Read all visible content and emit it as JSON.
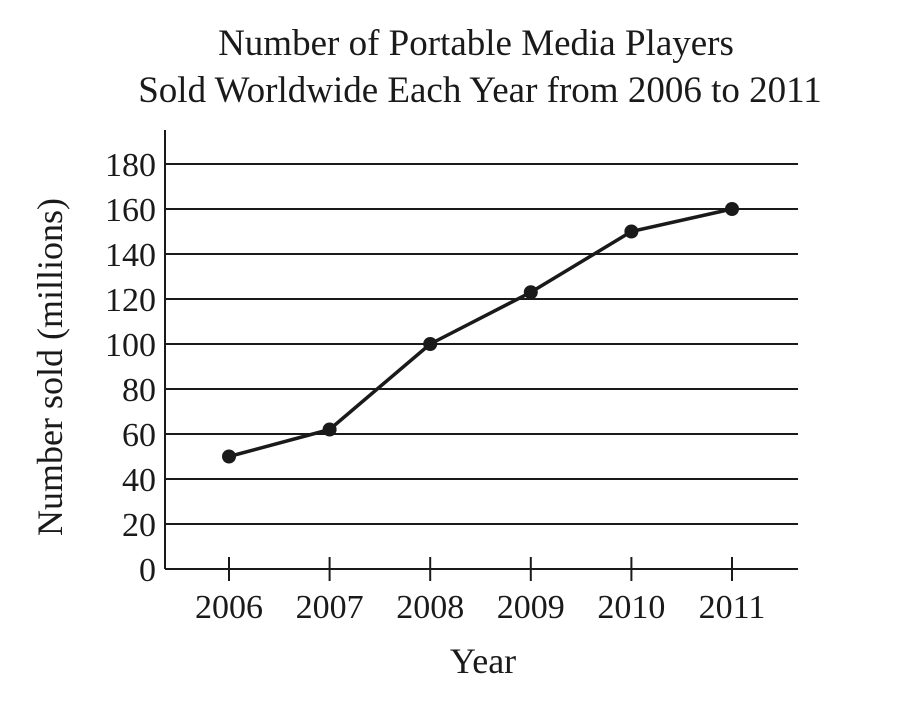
{
  "chart_data": {
    "type": "line",
    "title": [
      "Number of Portable Media Players",
      "Sold Worldwide Each Year from 2006 to 2011"
    ],
    "xlabel": "Year",
    "ylabel": "Number sold (millions)",
    "categories": [
      "2006",
      "2007",
      "2008",
      "2009",
      "2010",
      "2011"
    ],
    "values": [
      50,
      62,
      100,
      123,
      150,
      160
    ],
    "ylim": [
      0,
      180
    ],
    "yticks": [
      "0",
      "20",
      "40",
      "60",
      "80",
      "100",
      "120",
      "140",
      "160",
      "180"
    ],
    "grid": "horizontal",
    "legend": "none",
    "colors": {
      "line": "#1a1a1a",
      "grid": "#1a1a1a",
      "background": "#ffffff"
    }
  }
}
